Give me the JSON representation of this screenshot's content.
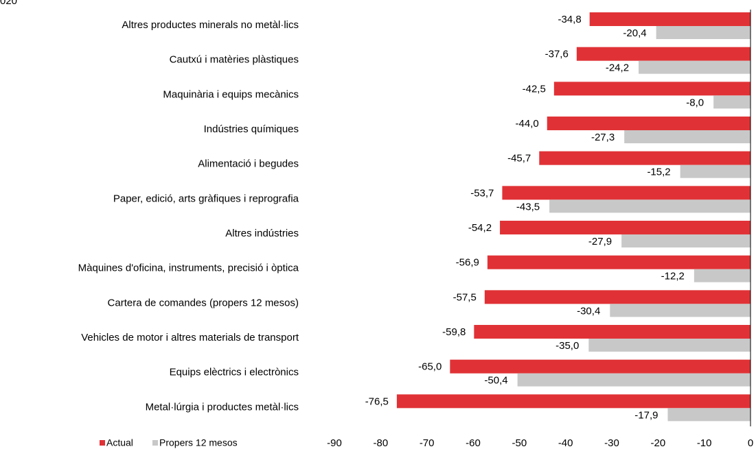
{
  "chart_data": {
    "type": "bar",
    "orientation": "horizontal",
    "title": "020",
    "categories": [
      "Altres productes minerals no metàl·lics",
      "Cautxú i matèries plàstiques",
      "Maquinària i equips mecànics",
      "Indústries químiques",
      "Alimentació i begudes",
      "Paper, edició, arts gràfiques i reprografia",
      "Altres indústries",
      "Màquines d'oficina, instruments, precisió i òptica",
      "Cartera de comandes (propers 12 mesos)",
      "Vehicles de motor i altres materials de transport",
      "Equips elèctrics i electrònics",
      "Metal·lúrgia i productes metàl·lics"
    ],
    "series": [
      {
        "name": "Actual",
        "color": "#e03236",
        "values": [
          -34.8,
          -37.6,
          -42.5,
          -44.0,
          -45.7,
          -53.7,
          -54.2,
          -56.9,
          -57.5,
          -59.8,
          -65.0,
          -76.5
        ],
        "value_labels": [
          "-34,8",
          "-37,6",
          "-42,5",
          "-44,0",
          "-45,7",
          "-53,7",
          "-54,2",
          "-56,9",
          "-57,5",
          "-59,8",
          "-65,0",
          "-76,5"
        ]
      },
      {
        "name": "Propers 12 mesos",
        "color": "#c8c8c8",
        "values": [
          -20.4,
          -24.2,
          -8.0,
          -27.3,
          -15.2,
          -43.5,
          -27.9,
          -12.2,
          -30.4,
          -35.0,
          -50.4,
          -17.9
        ],
        "value_labels": [
          "-20,4",
          "-24,2",
          "-8,0",
          "-27,3",
          "-15,2",
          "-43,5",
          "-27,9",
          "-12,2",
          "-30,4",
          "-35,0",
          "-50,4",
          "-17,9"
        ]
      }
    ],
    "xlim": [
      -90,
      0
    ],
    "xticks": [
      -90,
      -80,
      -70,
      -60,
      -50,
      -40,
      -30,
      -20,
      -10,
      0
    ],
    "legend": "bottom-left"
  }
}
